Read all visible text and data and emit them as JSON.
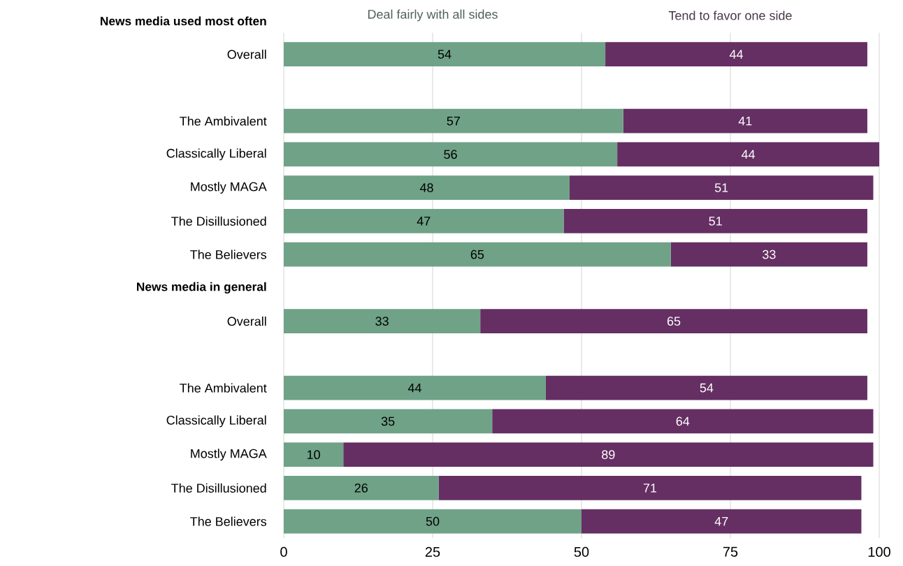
{
  "chart_data": {
    "type": "bar",
    "orientation": "horizontal",
    "stacked": true,
    "categories": [
      "News media used most often",
      "Overall",
      null,
      "The Ambivalent",
      "Classically Liberal",
      "Mostly MAGA",
      "The Disillusioned",
      "The Believers",
      "News media in general",
      "Overall",
      null,
      "The Ambivalent",
      "Classically Liberal",
      "Mostly MAGA",
      "The Disillusioned",
      "The Believers"
    ],
    "series": [
      {
        "name": "Deal fairly with all sides",
        "color": "#6fa287",
        "values": [
          null,
          54,
          null,
          57,
          56,
          48,
          47,
          65,
          null,
          33,
          null,
          44,
          35,
          10,
          26,
          50
        ]
      },
      {
        "name": "Tend to favor one side",
        "color": "#652f63",
        "values": [
          null,
          44,
          null,
          41,
          44,
          51,
          51,
          33,
          null,
          65,
          null,
          54,
          64,
          89,
          71,
          47
        ]
      }
    ],
    "xlim": [
      0,
      100
    ],
    "xticks": [
      0,
      25,
      50,
      75,
      100
    ],
    "grid": "x",
    "legend": "top",
    "data_labels": true
  }
}
